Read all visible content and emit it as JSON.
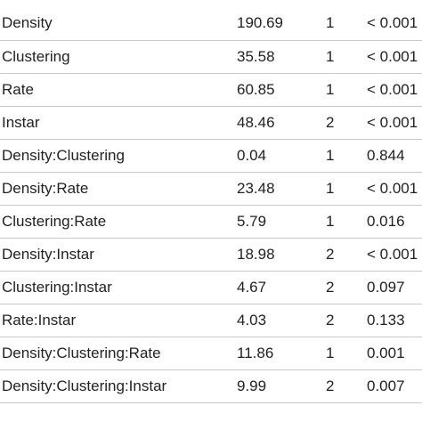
{
  "table": {
    "rows": [
      {
        "term": "Density",
        "statistic": "190.69",
        "df": "1",
        "p": "< 0.001"
      },
      {
        "term": "Clustering",
        "statistic": "35.58",
        "df": "1",
        "p": "< 0.001"
      },
      {
        "term": "Rate",
        "statistic": "60.85",
        "df": "1",
        "p": "< 0.001"
      },
      {
        "term": "Instar",
        "statistic": "48.46",
        "df": "2",
        "p": "< 0.001"
      },
      {
        "term": "Density:Clustering",
        "statistic": "0.04",
        "df": "1",
        "p": "0.844"
      },
      {
        "term": "Density:Rate",
        "statistic": "23.48",
        "df": "1",
        "p": "< 0.001"
      },
      {
        "term": "Clustering:Rate",
        "statistic": "5.79",
        "df": "1",
        "p": "0.016"
      },
      {
        "term": "Density:Instar",
        "statistic": "18.98",
        "df": "2",
        "p": "< 0.001"
      },
      {
        "term": "Clustering:Instar",
        "statistic": "4.67",
        "df": "2",
        "p": "0.097"
      },
      {
        "term": "Rate:Instar",
        "statistic": "4.03",
        "df": "2",
        "p": "0.133"
      },
      {
        "term": "Density:Clustering:Rate",
        "statistic": "11.86",
        "df": "1",
        "p": "0.001"
      },
      {
        "term": "Density:Clustering:Instar",
        "statistic": "9.99",
        "df": "2",
        "p": "0.007"
      }
    ]
  }
}
